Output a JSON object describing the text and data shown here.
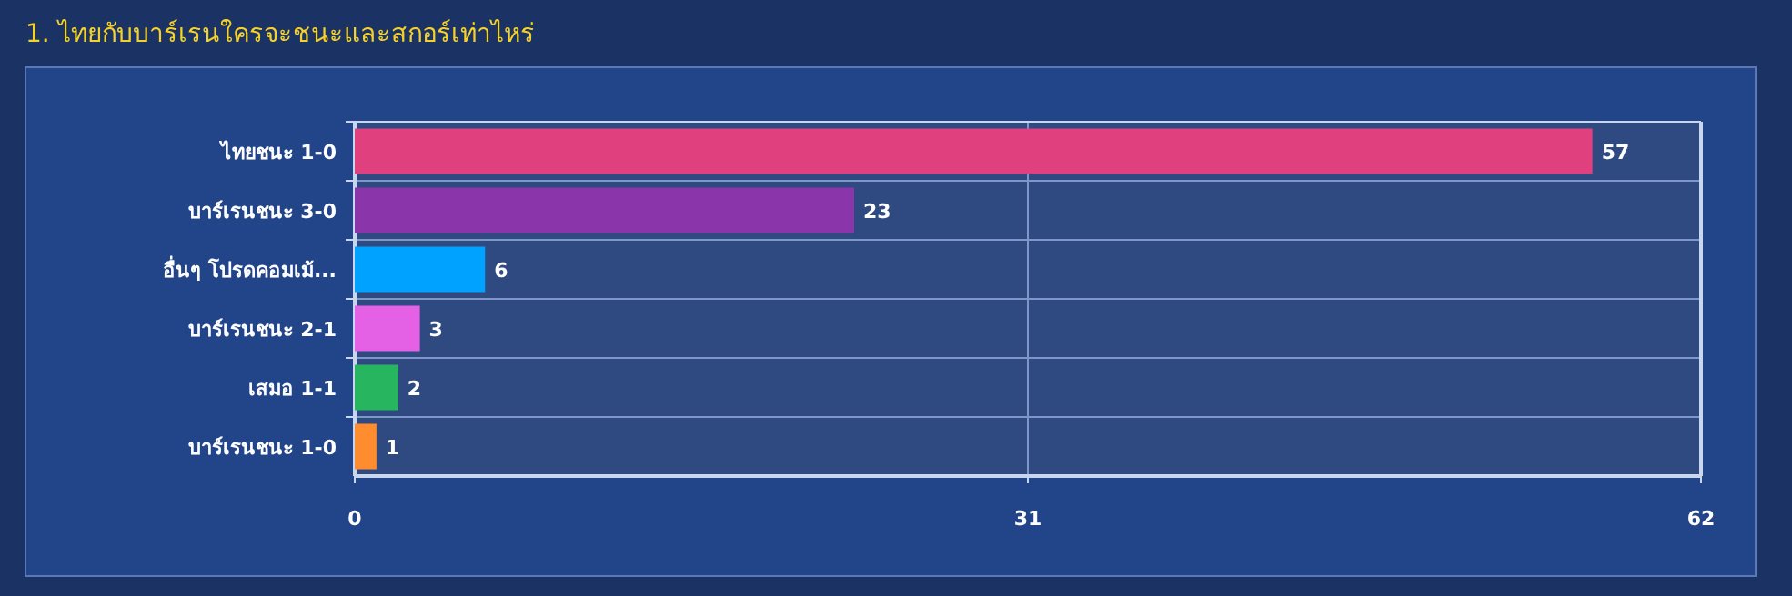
{
  "chart_data": {
    "type": "bar",
    "orientation": "horizontal",
    "title": "1. ไทยกับบาร์เรนใครจะชนะและสกอร์เท่าไหร่",
    "categories": [
      "ไทยชนะ 1-0",
      "บาร์เรนชนะ 3-0",
      "อื่นๆ โปรดคอมเม้...",
      "บาร์เรนชนะ 2-1",
      "เสมอ 1-1",
      "บาร์เรนชนะ 1-0"
    ],
    "values": [
      57,
      23,
      6,
      3,
      2,
      1
    ],
    "colors": [
      "#e0407e",
      "#8a35aa",
      "#00a2ff",
      "#e460e4",
      "#27b560",
      "#ff8c2e"
    ],
    "xlim": [
      0,
      62
    ],
    "xticks": [
      0,
      31,
      62
    ],
    "grid": true,
    "data_labels": true
  }
}
